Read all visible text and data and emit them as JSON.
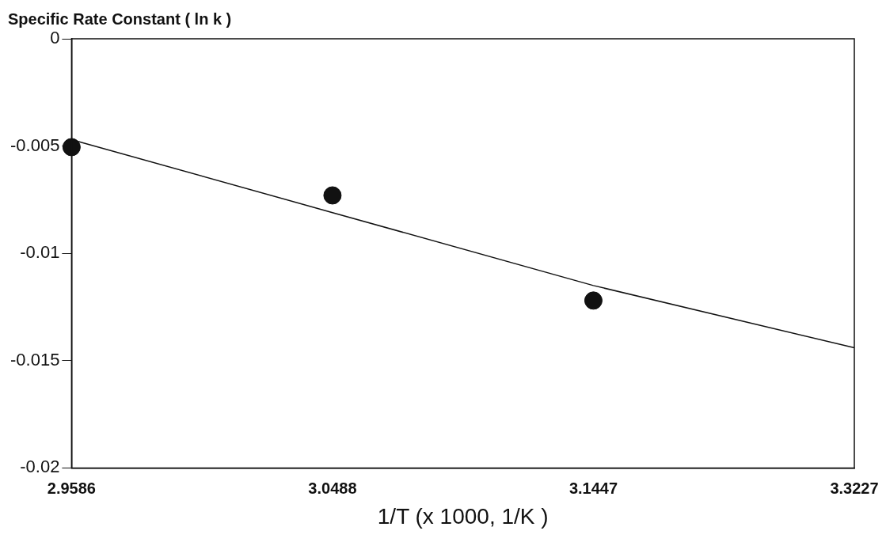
{
  "chart_data": {
    "type": "scatter",
    "ylabel": "Specific Rate Constant ( ln k )",
    "xlabel": "1/T (x 1000, 1/K )",
    "categories": [
      "2.9586",
      "3.0488",
      "3.1447",
      "3.3227"
    ],
    "series": [
      {
        "type": "scatter",
        "color": "#111111",
        "values": [
          -0.00505,
          -0.0073,
          -0.0122,
          null
        ],
        "marker": "circle"
      },
      {
        "type": "line",
        "color": "#111111",
        "values": [
          -0.0047,
          -0.0081,
          -0.0115,
          -0.0144
        ],
        "marker": "none"
      }
    ],
    "ylim": [
      -0.02,
      0
    ],
    "yticks": [
      0,
      -0.005,
      -0.01,
      -0.015,
      -0.02
    ],
    "grid": false,
    "legend": false
  }
}
